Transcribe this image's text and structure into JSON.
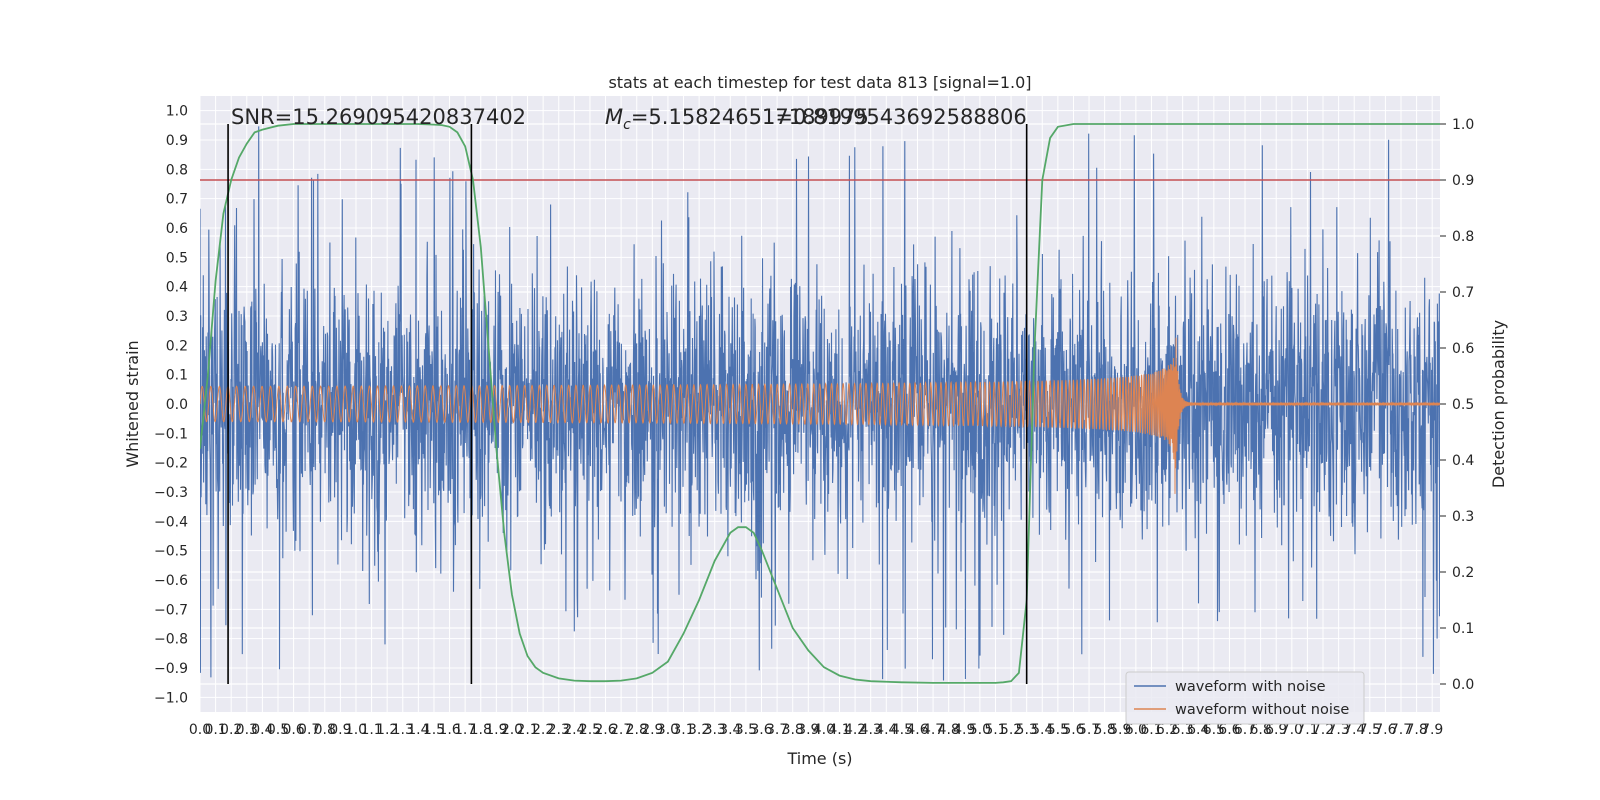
{
  "chart_data": {
    "type": "line",
    "title": "stats at each timestep for test data 813 [signal=1.0]",
    "xlabel": "Time (s)",
    "ylabel_left": "Whitened strain",
    "ylabel_right": "Detection probability",
    "xlim": [
      0.0,
      7.95
    ],
    "ylim_left": [
      -1.05,
      1.05
    ],
    "ylim_right": [
      -0.05,
      1.05
    ],
    "grid": true,
    "x_ticks": [
      "0.0",
      "0.1",
      "0.2",
      "0.3",
      "0.4",
      "0.5",
      "0.6",
      "0.7",
      "0.8",
      "0.9",
      "1.0",
      "1.1",
      "1.2",
      "1.3",
      "1.4",
      "1.5",
      "1.6",
      "1.7",
      "1.8",
      "1.9",
      "2.0",
      "2.1",
      "2.2",
      "2.3",
      "2.4",
      "2.5",
      "2.6",
      "2.7",
      "2.8",
      "2.9",
      "3.0",
      "3.1",
      "3.2",
      "3.3",
      "3.4",
      "3.5",
      "3.6",
      "3.7",
      "3.8",
      "3.9",
      "4.0",
      "4.1",
      "4.2",
      "4.3",
      "4.4",
      "4.5",
      "4.6",
      "4.7",
      "4.8",
      "4.9",
      "5.0",
      "5.1",
      "5.2",
      "5.3",
      "5.4",
      "5.5",
      "5.6",
      "5.7",
      "5.8",
      "5.9",
      "6.0",
      "6.1",
      "6.2",
      "6.3",
      "6.4",
      "6.5",
      "6.6",
      "6.7",
      "6.8",
      "6.9",
      "7.0",
      "7.1",
      "7.2",
      "7.3",
      "7.4",
      "7.5",
      "7.6",
      "7.7",
      "7.8",
      "7.9"
    ],
    "y_ticks_left": [
      "1.0",
      "0.9",
      "0.8",
      "0.7",
      "0.6",
      "0.5",
      "0.4",
      "0.3",
      "0.2",
      "0.1",
      "0.0",
      "−0.1",
      "−0.2",
      "−0.3",
      "−0.4",
      "−0.5",
      "−0.6",
      "−0.7",
      "−0.8",
      "−0.9",
      "−1.0"
    ],
    "y_ticks_right": [
      "1.0",
      "0.9",
      "0.8",
      "0.7",
      "0.6",
      "0.5",
      "0.4",
      "0.3",
      "0.2",
      "0.1",
      "0.0"
    ],
    "annotations": {
      "snr": "SNR=15.269095420837402",
      "mc_symbol": "M",
      "mc_subscript": "c",
      "mc_value": "=5.158246517189975",
      "overlap": "1=0.8199543692588806"
    },
    "threshold": {
      "value": 0.9,
      "axis": "right",
      "color": "#c44e52"
    },
    "vertical_markers_s": [
      0.18,
      1.74,
      5.3
    ],
    "series": [
      {
        "name": "waveform with noise",
        "color": "#4c72b0",
        "kind": "noise",
        "amplitude_typical": 0.5,
        "amplitude_max": 1.0
      },
      {
        "name": "waveform without noise",
        "color": "#dd8452",
        "kind": "chirp",
        "amp_start": 0.03,
        "amp_end": 0.35,
        "t_start": 0.0,
        "t_merge": 6.25,
        "ringdown_amp": 0.005
      },
      {
        "name": "detection probability",
        "color": "#55a868",
        "kind": "probability",
        "axis": "right",
        "x": [
          0.0,
          0.05,
          0.1,
          0.15,
          0.2,
          0.25,
          0.3,
          0.35,
          0.4,
          0.5,
          0.6,
          0.7,
          0.8,
          1.0,
          1.2,
          1.4,
          1.5,
          1.55,
          1.6,
          1.65,
          1.7,
          1.75,
          1.8,
          1.85,
          1.9,
          1.95,
          2.0,
          2.05,
          2.1,
          2.15,
          2.2,
          2.3,
          2.4,
          2.5,
          2.6,
          2.7,
          2.8,
          2.9,
          3.0,
          3.1,
          3.2,
          3.3,
          3.4,
          3.45,
          3.5,
          3.55,
          3.6,
          3.7,
          3.8,
          3.9,
          4.0,
          4.1,
          4.2,
          4.3,
          4.5,
          4.7,
          4.9,
          5.0,
          5.1,
          5.15,
          5.2,
          5.25,
          5.3,
          5.35,
          5.4,
          5.45,
          5.5,
          5.6,
          5.8,
          6.0,
          7.0,
          7.95
        ],
        "values": [
          0.42,
          0.55,
          0.72,
          0.84,
          0.9,
          0.94,
          0.965,
          0.985,
          0.99,
          0.997,
          1.0,
          1.0,
          1.0,
          1.0,
          1.0,
          1.0,
          0.999,
          0.998,
          0.995,
          0.985,
          0.96,
          0.9,
          0.78,
          0.6,
          0.42,
          0.27,
          0.16,
          0.09,
          0.05,
          0.03,
          0.02,
          0.01,
          0.006,
          0.005,
          0.005,
          0.006,
          0.01,
          0.02,
          0.04,
          0.09,
          0.15,
          0.22,
          0.27,
          0.28,
          0.28,
          0.27,
          0.24,
          0.17,
          0.1,
          0.06,
          0.03,
          0.015,
          0.008,
          0.005,
          0.003,
          0.002,
          0.002,
          0.002,
          0.002,
          0.003,
          0.005,
          0.02,
          0.15,
          0.6,
          0.9,
          0.975,
          0.995,
          1.0,
          1.0,
          1.0,
          1.0,
          1.0
        ]
      }
    ],
    "legend": {
      "position": "lower-right",
      "entries": [
        "waveform with noise",
        "waveform without noise"
      ]
    }
  }
}
